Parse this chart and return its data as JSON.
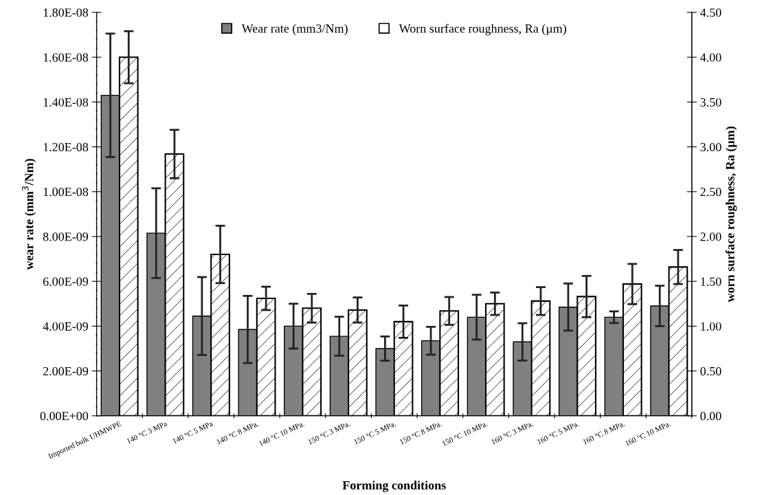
{
  "chart_data": {
    "type": "bar",
    "xlabel": "Forming conditions",
    "ylabel": "wear rate (mm$^{3}$/Nm)",
    "y2label": "worn surface roughness, Ra (µm)",
    "categories": [
      "Imported bulk UHMWPE",
      "140 °C 3 MPa",
      "140 °C 5 MPa",
      "140 °C 8 MPa.",
      "140 °C 10 MPa.",
      "150 °C 3 MPa.",
      "150 °C 5 MPa.",
      "150 °C 8 MPa.",
      "150 °C 10 MPa.",
      "160 °C 3 MPa.",
      "160 °C 5 MPa.",
      "160 °C 8 MPa.",
      "160 °C 10 MPa."
    ],
    "series": [
      {
        "name": "Wear rate (mm3/Nm)",
        "color": "#808080",
        "values": [
          1.43e-08,
          8.15e-09,
          4.45e-09,
          3.85e-09,
          4e-09,
          3.55e-09,
          3e-09,
          3.35e-09,
          4.4e-09,
          3.3e-09,
          4.85e-09,
          4.4e-09,
          4.9e-09
        ],
        "errors": [
          2.75e-09,
          2e-09,
          1.74e-09,
          1.5e-09,
          1e-09,
          8.7e-10,
          5.4e-10,
          6.2e-10,
          1e-09,
          8.3e-10,
          1.05e-09,
          2.6e-10,
          9e-10
        ]
      },
      {
        "name": "Worn surface roughness, Ra (µm)",
        "color": "#ffffff",
        "axis": "y2",
        "values": [
          4.0,
          2.92,
          1.8,
          1.31,
          1.2,
          1.18,
          1.05,
          1.17,
          1.25,
          1.28,
          1.33,
          1.47,
          1.66
        ],
        "errors": [
          0.29,
          0.27,
          0.32,
          0.13,
          0.16,
          0.14,
          0.18,
          0.155,
          0.125,
          0.155,
          0.23,
          0.225,
          0.19
        ]
      }
    ],
    "ylim": [
      0,
      1.8e-08
    ],
    "yticks": [
      {
        "value": 0,
        "label": "0.00E+00"
      },
      {
        "value": 2e-09,
        "label": "2.00E-09"
      },
      {
        "value": 4e-09,
        "label": "4.00E-09"
      },
      {
        "value": 6e-09,
        "label": "6.00E-09"
      },
      {
        "value": 8e-09,
        "label": "8.00E-09"
      },
      {
        "value": 1e-08,
        "label": "1.00E-08"
      },
      {
        "value": 1.2e-08,
        "label": "1.20E-08"
      },
      {
        "value": 1.4e-08,
        "label": "1.40E-08"
      },
      {
        "value": 1.6e-08,
        "label": "1.60E-08"
      },
      {
        "value": 1.8e-08,
        "label": "1.80E-08"
      }
    ],
    "y2lim": [
      0,
      4.5
    ],
    "y2ticks": [
      {
        "value": 0,
        "label": "0.00"
      },
      {
        "value": 0.5,
        "label": "0.50"
      },
      {
        "value": 1.0,
        "label": "1.00"
      },
      {
        "value": 1.5,
        "label": "1.50"
      },
      {
        "value": 2.0,
        "label": "2.00"
      },
      {
        "value": 2.5,
        "label": "2.50"
      },
      {
        "value": 3.0,
        "label": "3.00"
      },
      {
        "value": 3.5,
        "label": "3.50"
      },
      {
        "value": 4.0,
        "label": "4.00"
      },
      {
        "value": 4.5,
        "label": "4.50"
      }
    ],
    "legend": "top",
    "grid": false
  }
}
